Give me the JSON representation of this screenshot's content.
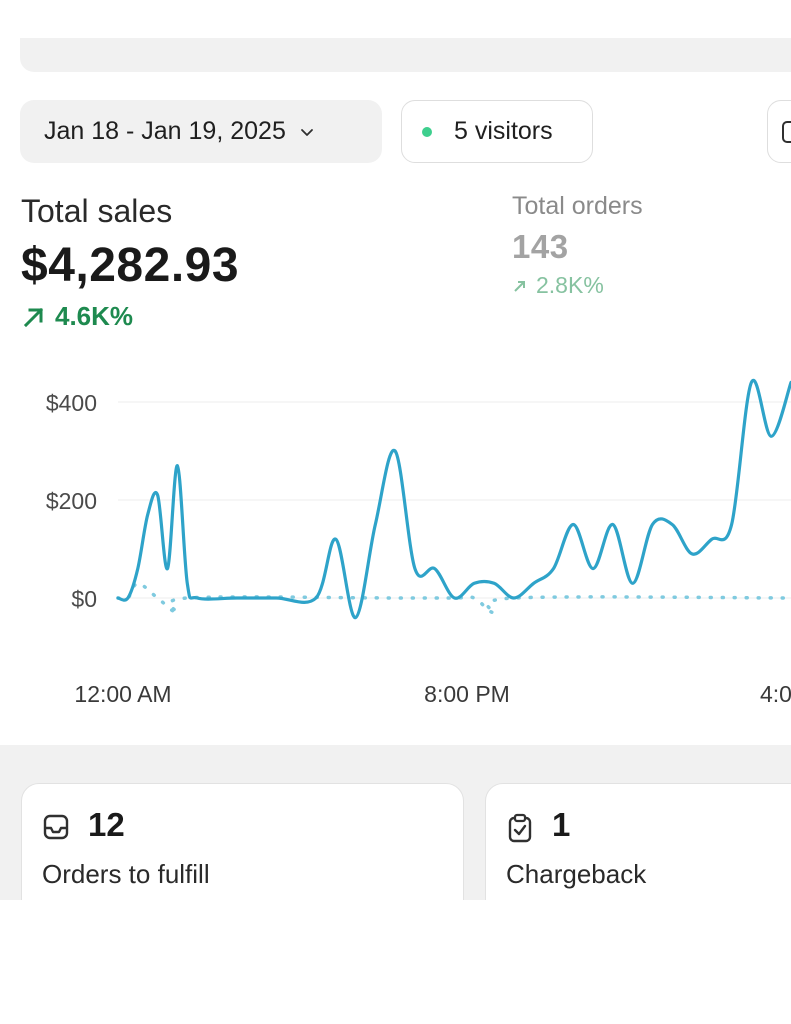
{
  "filters": {
    "date_range": "Jan 18 - Jan 19, 2025",
    "visitors_label": "5 visitors",
    "colors": {
      "live_dot": "#3ecf8e"
    }
  },
  "metrics": {
    "total_sales": {
      "label": "Total sales",
      "value": "$4,282.93",
      "change": "4.6K%"
    },
    "total_orders": {
      "label": "Total orders",
      "value": "143",
      "change": "2.8K%"
    }
  },
  "chart_data": {
    "type": "line",
    "title": "",
    "xlabel": "",
    "ylabel": "",
    "y_ticks": [
      "$400",
      "$200",
      "$0"
    ],
    "x_ticks": [
      "12:00 AM",
      "8:00 PM",
      "4:0"
    ],
    "ylim": [
      -50,
      450
    ],
    "grid": true,
    "colors": {
      "current": "#2ea3c9",
      "comparison": "#7fcadf"
    },
    "series": [
      {
        "style": "solid",
        "points": [
          [
            0,
            0
          ],
          [
            0.5,
            0
          ],
          [
            1,
            60
          ],
          [
            1.5,
            170
          ],
          [
            2,
            210
          ],
          [
            2.5,
            60
          ],
          [
            3,
            270
          ],
          [
            3.5,
            30
          ],
          [
            4,
            0
          ],
          [
            6,
            0
          ],
          [
            8,
            0
          ],
          [
            10,
            0
          ],
          [
            11,
            120
          ],
          [
            12,
            -40
          ],
          [
            13,
            150
          ],
          [
            14,
            300
          ],
          [
            15,
            60
          ],
          [
            16,
            60
          ],
          [
            17,
            0
          ],
          [
            18,
            30
          ],
          [
            19,
            30
          ],
          [
            20,
            0
          ],
          [
            21,
            30
          ],
          [
            22,
            60
          ],
          [
            23,
            150
          ],
          [
            24,
            60
          ],
          [
            25,
            150
          ],
          [
            26,
            30
          ],
          [
            27,
            150
          ],
          [
            28,
            150
          ],
          [
            29,
            90
          ],
          [
            30,
            120
          ],
          [
            31,
            150
          ],
          [
            32,
            440
          ],
          [
            33,
            330
          ],
          [
            34,
            440
          ]
        ]
      },
      {
        "style": "dotted",
        "points": [
          [
            0,
            0
          ],
          [
            0.5,
            0
          ],
          [
            1,
            30
          ],
          [
            2,
            0
          ],
          [
            3,
            -30
          ],
          [
            3.5,
            0
          ],
          [
            14,
            0
          ],
          [
            17,
            0
          ],
          [
            18,
            0
          ],
          [
            19,
            -30
          ],
          [
            20,
            0
          ],
          [
            34,
            0
          ]
        ]
      }
    ]
  },
  "cards": [
    {
      "icon": "inbox-icon",
      "count": "12",
      "label": "Orders to fulfill"
    },
    {
      "icon": "clipboard-check-icon",
      "count": "1",
      "label": "Chargeback"
    }
  ]
}
